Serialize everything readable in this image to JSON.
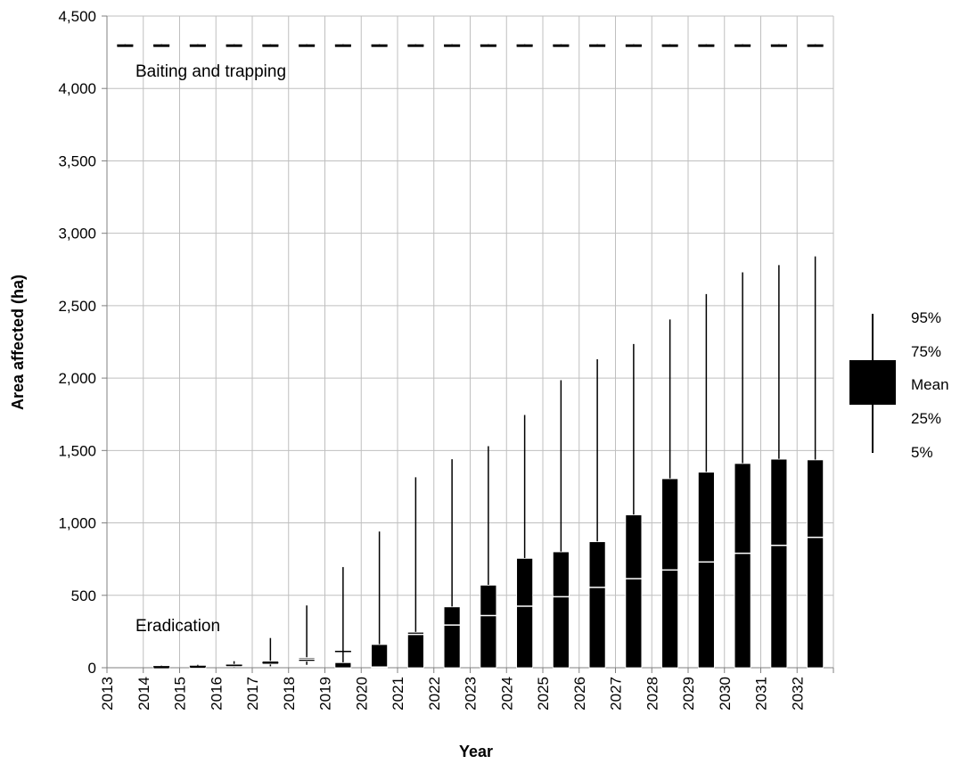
{
  "chart_data": {
    "type": "box",
    "title": "",
    "xlabel": "Year",
    "ylabel": "Area affected (ha)",
    "ylim": [
      0,
      4500
    ],
    "yticks": [
      0,
      500,
      1000,
      1500,
      2000,
      2500,
      3000,
      3500,
      4000,
      4500
    ],
    "ytick_labels": [
      "0",
      "500",
      "1,000",
      "1,500",
      "2,000",
      "2,500",
      "3,000",
      "3,500",
      "4,000",
      "4,500"
    ],
    "categories": [
      "2013",
      "2014",
      "2015",
      "2016",
      "2017",
      "2018",
      "2019",
      "2020",
      "2021",
      "2022",
      "2023",
      "2024",
      "2025",
      "2026",
      "2027",
      "2028",
      "2029",
      "2030",
      "2031",
      "2032"
    ],
    "grid": true,
    "legend_position": "right",
    "legend": {
      "p95": "95%",
      "p75": "75%",
      "mean": "Mean",
      "p25": "25%",
      "p5": "5%"
    },
    "annotations": {
      "baiting": "Baiting and trapping",
      "eradication": "Eradication"
    },
    "series": [
      {
        "strategy": "Baiting and trapping",
        "boxes": [
          {
            "year": "2013",
            "p5": 4295,
            "p25": 4298,
            "mean": 4300,
            "p75": 4302,
            "p95": 4305
          },
          {
            "year": "2014",
            "p5": 4295,
            "p25": 4298,
            "mean": 4300,
            "p75": 4302,
            "p95": 4305
          },
          {
            "year": "2015",
            "p5": 4295,
            "p25": 4298,
            "mean": 4300,
            "p75": 4302,
            "p95": 4305
          },
          {
            "year": "2016",
            "p5": 4295,
            "p25": 4298,
            "mean": 4300,
            "p75": 4302,
            "p95": 4305
          },
          {
            "year": "2017",
            "p5": 4295,
            "p25": 4298,
            "mean": 4300,
            "p75": 4302,
            "p95": 4305
          },
          {
            "year": "2018",
            "p5": 4295,
            "p25": 4298,
            "mean": 4300,
            "p75": 4302,
            "p95": 4305
          },
          {
            "year": "2019",
            "p5": 4295,
            "p25": 4298,
            "mean": 4300,
            "p75": 4302,
            "p95": 4305
          },
          {
            "year": "2020",
            "p5": 4295,
            "p25": 4298,
            "mean": 4300,
            "p75": 4302,
            "p95": 4305
          },
          {
            "year": "2021",
            "p5": 4295,
            "p25": 4298,
            "mean": 4300,
            "p75": 4302,
            "p95": 4305
          },
          {
            "year": "2022",
            "p5": 4295,
            "p25": 4298,
            "mean": 4300,
            "p75": 4302,
            "p95": 4305
          },
          {
            "year": "2023",
            "p5": 4295,
            "p25": 4298,
            "mean": 4300,
            "p75": 4302,
            "p95": 4305
          },
          {
            "year": "2024",
            "p5": 4295,
            "p25": 4298,
            "mean": 4300,
            "p75": 4302,
            "p95": 4305
          },
          {
            "year": "2025",
            "p5": 4295,
            "p25": 4298,
            "mean": 4300,
            "p75": 4302,
            "p95": 4305
          },
          {
            "year": "2026",
            "p5": 4295,
            "p25": 4298,
            "mean": 4300,
            "p75": 4302,
            "p95": 4305
          },
          {
            "year": "2027",
            "p5": 4295,
            "p25": 4298,
            "mean": 4300,
            "p75": 4302,
            "p95": 4305
          },
          {
            "year": "2028",
            "p5": 4295,
            "p25": 4298,
            "mean": 4300,
            "p75": 4302,
            "p95": 4305
          },
          {
            "year": "2029",
            "p5": 4295,
            "p25": 4298,
            "mean": 4300,
            "p75": 4302,
            "p95": 4305
          },
          {
            "year": "2030",
            "p5": 4295,
            "p25": 4298,
            "mean": 4300,
            "p75": 4302,
            "p95": 4305
          },
          {
            "year": "2031",
            "p5": 4295,
            "p25": 4298,
            "mean": 4300,
            "p75": 4302,
            "p95": 4305
          },
          {
            "year": "2032",
            "p5": 4295,
            "p25": 4298,
            "mean": 4300,
            "p75": 4302,
            "p95": 4305
          }
        ]
      },
      {
        "strategy": "Eradication",
        "boxes": [
          {
            "year": "2014",
            "p5": 3,
            "p25": 5,
            "mean": 7,
            "p75": 9,
            "p95": 14
          },
          {
            "year": "2015",
            "p5": 3,
            "p25": 6,
            "mean": 9,
            "p75": 12,
            "p95": 20
          },
          {
            "year": "2016",
            "p5": 5,
            "p25": 10,
            "mean": 17,
            "p75": 24,
            "p95": 45
          },
          {
            "year": "2017",
            "p5": 10,
            "p25": 25,
            "mean": 35,
            "p75": 45,
            "p95": 205
          },
          {
            "year": "2018",
            "p5": 20,
            "p25": 45,
            "mean": 60,
            "p75": 70,
            "p95": 430
          },
          {
            "year": "2019",
            "p5": 20,
            "p25": 0,
            "mean": 112,
            "p75": 35,
            "p95": 695
          },
          {
            "year": "2020",
            "p5": 0,
            "p25": 0,
            "mean": 5,
            "p75": 160,
            "p95": 940
          },
          {
            "year": "2021",
            "p5": 0,
            "p25": 0,
            "mean": 230,
            "p75": 245,
            "p95": 1315
          },
          {
            "year": "2022",
            "p5": 0,
            "p25": 0,
            "mean": 295,
            "p75": 420,
            "p95": 1440
          },
          {
            "year": "2023",
            "p5": 0,
            "p25": 0,
            "mean": 360,
            "p75": 570,
            "p95": 1530
          },
          {
            "year": "2024",
            "p5": 0,
            "p25": 0,
            "mean": 425,
            "p75": 755,
            "p95": 1745
          },
          {
            "year": "2025",
            "p5": 0,
            "p25": 0,
            "mean": 490,
            "p75": 800,
            "p95": 1985
          },
          {
            "year": "2026",
            "p5": 0,
            "p25": 0,
            "mean": 555,
            "p75": 870,
            "p95": 2130
          },
          {
            "year": "2027",
            "p5": 0,
            "p25": 0,
            "mean": 615,
            "p75": 1055,
            "p95": 2235
          },
          {
            "year": "2028",
            "p5": 0,
            "p25": 0,
            "mean": 675,
            "p75": 1305,
            "p95": 2405
          },
          {
            "year": "2029",
            "p5": 0,
            "p25": 0,
            "mean": 730,
            "p75": 1350,
            "p95": 2580
          },
          {
            "year": "2030",
            "p5": 0,
            "p25": 0,
            "mean": 790,
            "p75": 1410,
            "p95": 2730
          },
          {
            "year": "2031",
            "p5": 0,
            "p25": 0,
            "mean": 845,
            "p75": 1440,
            "p95": 2780
          },
          {
            "year": "2032",
            "p5": 0,
            "p25": 0,
            "mean": 900,
            "p75": 1435,
            "p95": 2840
          }
        ]
      }
    ]
  }
}
